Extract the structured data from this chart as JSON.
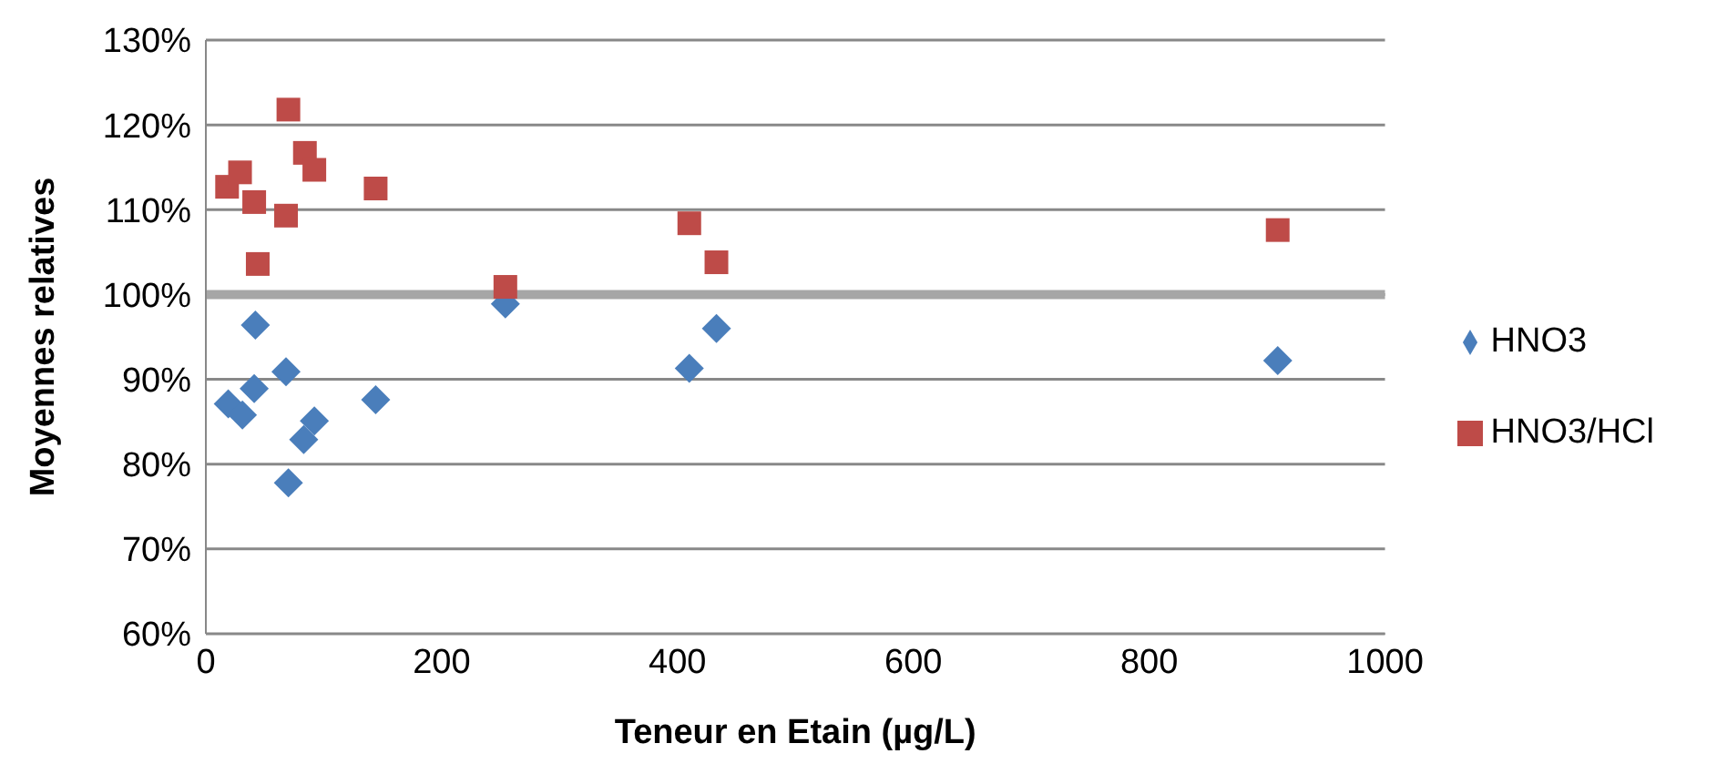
{
  "chart_data": {
    "type": "scatter",
    "xlabel": "Teneur en Etain (µg/L)",
    "ylabel": "Moyennes relatives",
    "xlim": [
      0,
      1000
    ],
    "xticks": [
      0,
      200,
      400,
      600,
      800,
      1000
    ],
    "ylim": [
      60,
      130
    ],
    "yticks": [
      {
        "value": 60,
        "label": "60%"
      },
      {
        "value": 70,
        "label": "70%"
      },
      {
        "value": 80,
        "label": "80%"
      },
      {
        "value": 90,
        "label": "90%"
      },
      {
        "value": 100,
        "label": "100%"
      },
      {
        "value": 110,
        "label": "110%"
      },
      {
        "value": 120,
        "label": "120%"
      },
      {
        "value": 130,
        "label": "130%"
      }
    ],
    "grid": "y",
    "legend": "right",
    "ref_lines": [
      {
        "axis": "y",
        "value": 100,
        "color": "#a6a6a6"
      }
    ],
    "series": [
      {
        "name": "HNO3",
        "color": "#4a7ebb",
        "marker": "diamond",
        "x": [
          19,
          31,
          41,
          42,
          68,
          70,
          83,
          92,
          144,
          254,
          410,
          433,
          909
        ],
        "values": [
          87.1,
          85.8,
          88.9,
          96.4,
          90.9,
          77.8,
          82.9,
          85.1,
          87.6,
          98.9,
          91.3,
          96.0,
          92.2
        ]
      },
      {
        "name": "HNO3/HCl",
        "color": "#be4b48",
        "marker": "square",
        "x": [
          18,
          29,
          41,
          44,
          68,
          70,
          84,
          92,
          144,
          254,
          410,
          433,
          909
        ],
        "values": [
          112.7,
          114.4,
          110.9,
          103.6,
          109.3,
          121.8,
          116.7,
          114.7,
          112.5,
          100.9,
          108.4,
          103.8,
          107.6
        ]
      }
    ]
  }
}
